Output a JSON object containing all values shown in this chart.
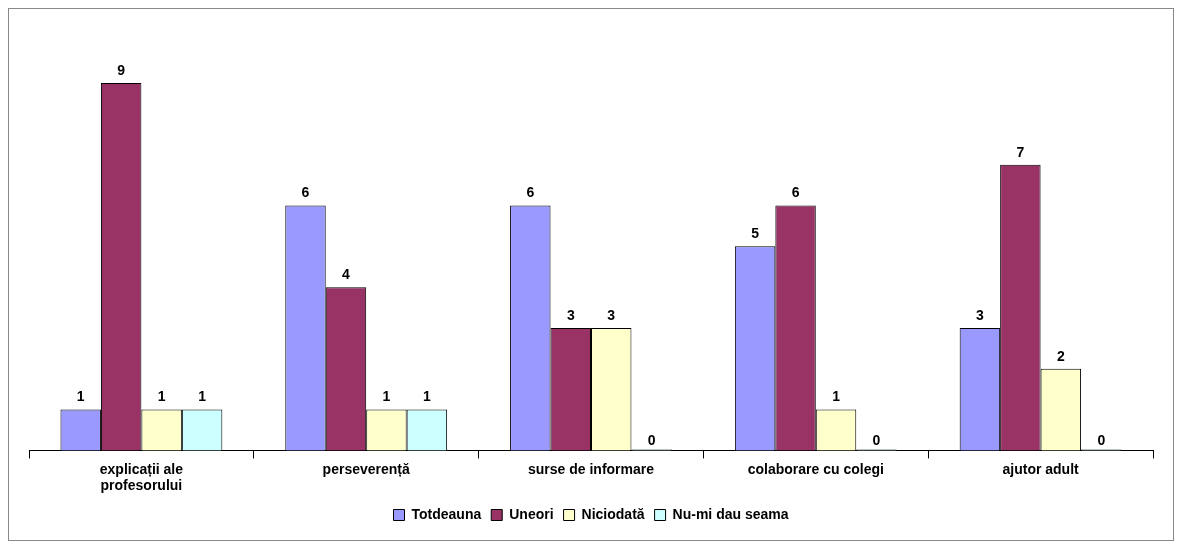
{
  "chart_data": {
    "type": "bar",
    "categories": [
      "explicații ale profesorului",
      "perseverență",
      "surse de informare",
      "colaborare cu colegi",
      "ajutor adult"
    ],
    "series": [
      {
        "name": "Totdeauna",
        "color": "#9999ff",
        "values": [
          1,
          6,
          6,
          5,
          3
        ]
      },
      {
        "name": "Uneori",
        "color": "#993366",
        "values": [
          9,
          4,
          3,
          6,
          7
        ]
      },
      {
        "name": "Niciodată",
        "color": "#ffffcc",
        "values": [
          1,
          1,
          3,
          1,
          2
        ]
      },
      {
        "name": "Nu-mi dau seama",
        "color": "#ccffff",
        "values": [
          1,
          1,
          0,
          0,
          0
        ]
      }
    ],
    "data_labels": true,
    "legend": "bottom",
    "grid": false
  }
}
